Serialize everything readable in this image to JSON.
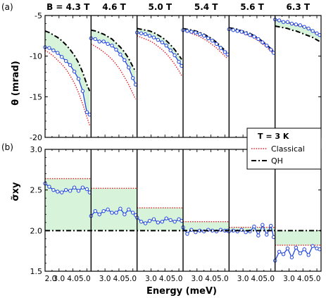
{
  "panel_labels": {
    "a": "(a)",
    "b": "(b)"
  },
  "field_prefix": "B = ",
  "axis_labels": {
    "xlabel": "Energy (meV)"
  },
  "legend": {
    "temperature": "T = 3 K",
    "classical": "Classical",
    "qh": "QH"
  },
  "colors": {
    "series": "#1f44e0",
    "classical": "#e0202a",
    "qh": "#000000",
    "fill": "#d7f3da"
  },
  "xticks_first": [
    {
      "v": 2.0,
      "label": "2.0"
    },
    {
      "v": 3.0,
      "label": "3.0"
    },
    {
      "v": 4.0,
      "label": "4.0"
    },
    {
      "v": 5.0,
      "label": "5.0"
    }
  ],
  "xticks_other": [
    {
      "v": 3.0,
      "label": "3.0"
    },
    {
      "v": 4.0,
      "label": "4.0"
    },
    {
      "v": 5.0,
      "label": "5.0"
    }
  ],
  "chart_data": [
    {
      "type": "line",
      "ylabel": "θ (mrad)",
      "ylim": [
        -20,
        -5
      ],
      "yticks": [
        -5,
        -10,
        -15,
        -20
      ],
      "xlim": [
        2.0,
        5.3
      ],
      "panels": [
        {
          "field": "4.3 T",
          "x": [
            2.0,
            2.3,
            2.6,
            2.9,
            3.2,
            3.5,
            3.8,
            4.1,
            4.4,
            4.7,
            5.0,
            5.2
          ],
          "measured": [
            -8.9,
            -9.0,
            -9.3,
            -9.6,
            -10.1,
            -10.6,
            -11.1,
            -11.9,
            -12.8,
            -14.3,
            -16.9,
            -17.2
          ],
          "classical": [
            -9.3,
            -9.6,
            -10.0,
            -10.5,
            -11.0,
            -11.6,
            -12.4,
            -13.3,
            -14.5,
            -15.9,
            -17.5,
            -18.5
          ],
          "qh": [
            -6.9,
            -7.1,
            -7.4,
            -7.7,
            -8.1,
            -8.6,
            -9.2,
            -9.9,
            -10.8,
            -12.0,
            -13.5,
            -14.3
          ]
        },
        {
          "field": "4.6 T",
          "x": [
            2.0,
            2.3,
            2.6,
            2.9,
            3.2,
            3.5,
            3.8,
            4.1,
            4.4,
            4.7,
            5.0,
            5.2
          ],
          "measured": [
            -7.8,
            -7.9,
            -8.2,
            -8.2,
            -8.5,
            -8.7,
            -9.2,
            -9.8,
            -10.5,
            -11.4,
            -12.7,
            -13.5
          ],
          "classical": [
            -8.5,
            -8.8,
            -9.1,
            -9.5,
            -9.9,
            -10.4,
            -11.0,
            -11.7,
            -12.6,
            -13.5,
            -14.6,
            -15.3
          ],
          "qh": [
            -6.8,
            -6.9,
            -7.1,
            -7.3,
            -7.6,
            -7.9,
            -8.4,
            -8.9,
            -9.5,
            -10.3,
            -11.3,
            -11.9
          ]
        },
        {
          "field": "5.0 T",
          "x": [
            2.0,
            2.3,
            2.6,
            2.9,
            3.2,
            3.5,
            3.8,
            4.1,
            4.4,
            4.7,
            5.0,
            5.2
          ],
          "measured": [
            -7.1,
            -7.2,
            -7.3,
            -7.5,
            -7.7,
            -8.0,
            -8.3,
            -8.7,
            -9.3,
            -9.9,
            -10.7,
            -11.2
          ],
          "classical": [
            -7.5,
            -7.7,
            -7.9,
            -8.1,
            -8.4,
            -8.8,
            -9.2,
            -9.7,
            -10.3,
            -11.0,
            -11.8,
            -12.4
          ],
          "qh": [
            -6.6,
            -6.7,
            -6.8,
            -6.9,
            -7.1,
            -7.4,
            -7.7,
            -8.1,
            -8.6,
            -9.2,
            -9.9,
            -10.4
          ]
        },
        {
          "field": "5.4 T",
          "x": [
            2.0,
            2.3,
            2.6,
            2.9,
            3.2,
            3.5,
            3.8,
            4.1,
            4.4,
            4.7,
            5.0,
            5.2
          ],
          "measured": [
            -6.8,
            -6.9,
            -7.0,
            -7.1,
            -7.3,
            -7.5,
            -7.8,
            -8.1,
            -8.5,
            -9.0,
            -9.5,
            -9.8
          ],
          "classical": [
            -6.9,
            -7.0,
            -7.2,
            -7.4,
            -7.6,
            -7.9,
            -8.2,
            -8.6,
            -9.0,
            -9.5,
            -10.0,
            -10.3
          ],
          "qh": [
            -6.6,
            -6.7,
            -6.8,
            -6.9,
            -7.1,
            -7.3,
            -7.6,
            -7.9,
            -8.3,
            -8.8,
            -9.3,
            -9.6
          ]
        },
        {
          "field": "5.6 T",
          "x": [
            2.0,
            2.3,
            2.6,
            2.9,
            3.2,
            3.5,
            3.8,
            4.1,
            4.4,
            4.7,
            5.0,
            5.2
          ],
          "measured": [
            -6.7,
            -6.8,
            -6.9,
            -7.0,
            -7.2,
            -7.4,
            -7.6,
            -7.9,
            -8.3,
            -8.7,
            -9.2,
            -9.6
          ],
          "classical": [
            -6.7,
            -6.8,
            -6.9,
            -7.1,
            -7.3,
            -7.5,
            -7.8,
            -8.1,
            -8.5,
            -8.9,
            -9.4,
            -9.7
          ],
          "qh": [
            -6.5,
            -6.6,
            -6.7,
            -6.9,
            -7.0,
            -7.2,
            -7.5,
            -7.8,
            -8.2,
            -8.6,
            -9.1,
            -9.4
          ]
        },
        {
          "field": "6.3 T",
          "x": [
            2.0,
            2.3,
            2.6,
            2.9,
            3.2,
            3.5,
            3.8,
            4.1,
            4.4,
            4.7,
            5.0,
            5.2
          ],
          "measured": [
            -5.5,
            -5.6,
            -5.8,
            -5.8,
            -6.0,
            -6.1,
            -6.2,
            -6.4,
            -6.6,
            -6.9,
            -7.2,
            -7.4
          ],
          "classical": [
            -5.6,
            -5.7,
            -5.8,
            -5.9,
            -6.0,
            -6.2,
            -6.3,
            -6.5,
            -6.7,
            -7.0,
            -7.3,
            -7.5
          ],
          "qh": [
            -6.3,
            -6.4,
            -6.5,
            -6.6,
            -6.8,
            -6.9,
            -7.1,
            -7.3,
            -7.5,
            -7.7,
            -8.0,
            -8.2
          ]
        }
      ]
    },
    {
      "type": "line",
      "ylabel": "σ̃xy",
      "ylim": [
        1.5,
        3.0
      ],
      "yticks": [
        1.5,
        2.0,
        2.5,
        3.0
      ],
      "xlim": [
        2.0,
        5.3
      ],
      "qh_level": 2.0,
      "panels": [
        {
          "field": "4.3 T",
          "classical_level": 2.64,
          "x": [
            2.0,
            2.3,
            2.6,
            2.9,
            3.2,
            3.5,
            3.8,
            4.1,
            4.4,
            4.7,
            5.0,
            5.2
          ],
          "measured": [
            2.58,
            2.54,
            2.5,
            2.48,
            2.47,
            2.5,
            2.49,
            2.53,
            2.49,
            2.53,
            2.51,
            2.47
          ]
        },
        {
          "field": "4.6 T",
          "classical_level": 2.52,
          "x": [
            2.0,
            2.3,
            2.6,
            2.9,
            3.2,
            3.5,
            3.8,
            4.1,
            4.4,
            4.7,
            5.0,
            5.2
          ],
          "measured": [
            2.18,
            2.24,
            2.2,
            2.24,
            2.26,
            2.22,
            2.22,
            2.27,
            2.2,
            2.26,
            2.22,
            2.19
          ]
        },
        {
          "field": "5.0 T",
          "classical_level": 2.28,
          "x": [
            2.0,
            2.3,
            2.6,
            2.9,
            3.2,
            3.5,
            3.8,
            4.1,
            4.4,
            4.7,
            5.0,
            5.2
          ],
          "measured": [
            2.16,
            2.11,
            2.09,
            2.12,
            2.14,
            2.1,
            2.11,
            2.15,
            2.13,
            2.11,
            2.14,
            2.12
          ]
        },
        {
          "field": "5.4 T",
          "classical_level": 2.11,
          "x": [
            2.0,
            2.3,
            2.6,
            2.9,
            3.2,
            3.5,
            3.8,
            4.1,
            4.4,
            4.7,
            5.0,
            5.2
          ],
          "measured": [
            2.04,
            1.96,
            2.01,
            1.98,
            2.0,
            1.99,
            2.01,
            2.0,
            1.99,
            2.01,
            2.0,
            2.0
          ]
        },
        {
          "field": "5.6 T",
          "classical_level": 2.04,
          "x": [
            2.0,
            2.3,
            2.6,
            2.9,
            3.2,
            3.5,
            3.8,
            4.1,
            4.4,
            4.7,
            5.0,
            5.2
          ],
          "measured": [
            1.99,
            2.0,
            1.99,
            2.01,
            1.98,
            1.99,
            2.05,
            1.94,
            2.07,
            1.95,
            2.06,
            1.92
          ]
        },
        {
          "field": "6.3 T",
          "classical_level": 1.82,
          "x": [
            2.0,
            2.3,
            2.6,
            2.9,
            3.2,
            3.5,
            3.8,
            4.1,
            4.4,
            4.7,
            5.0,
            5.2
          ],
          "measured": [
            1.63,
            1.74,
            1.71,
            1.78,
            1.67,
            1.79,
            1.72,
            1.77,
            1.7,
            1.81,
            1.78,
            1.77
          ]
        }
      ]
    }
  ]
}
